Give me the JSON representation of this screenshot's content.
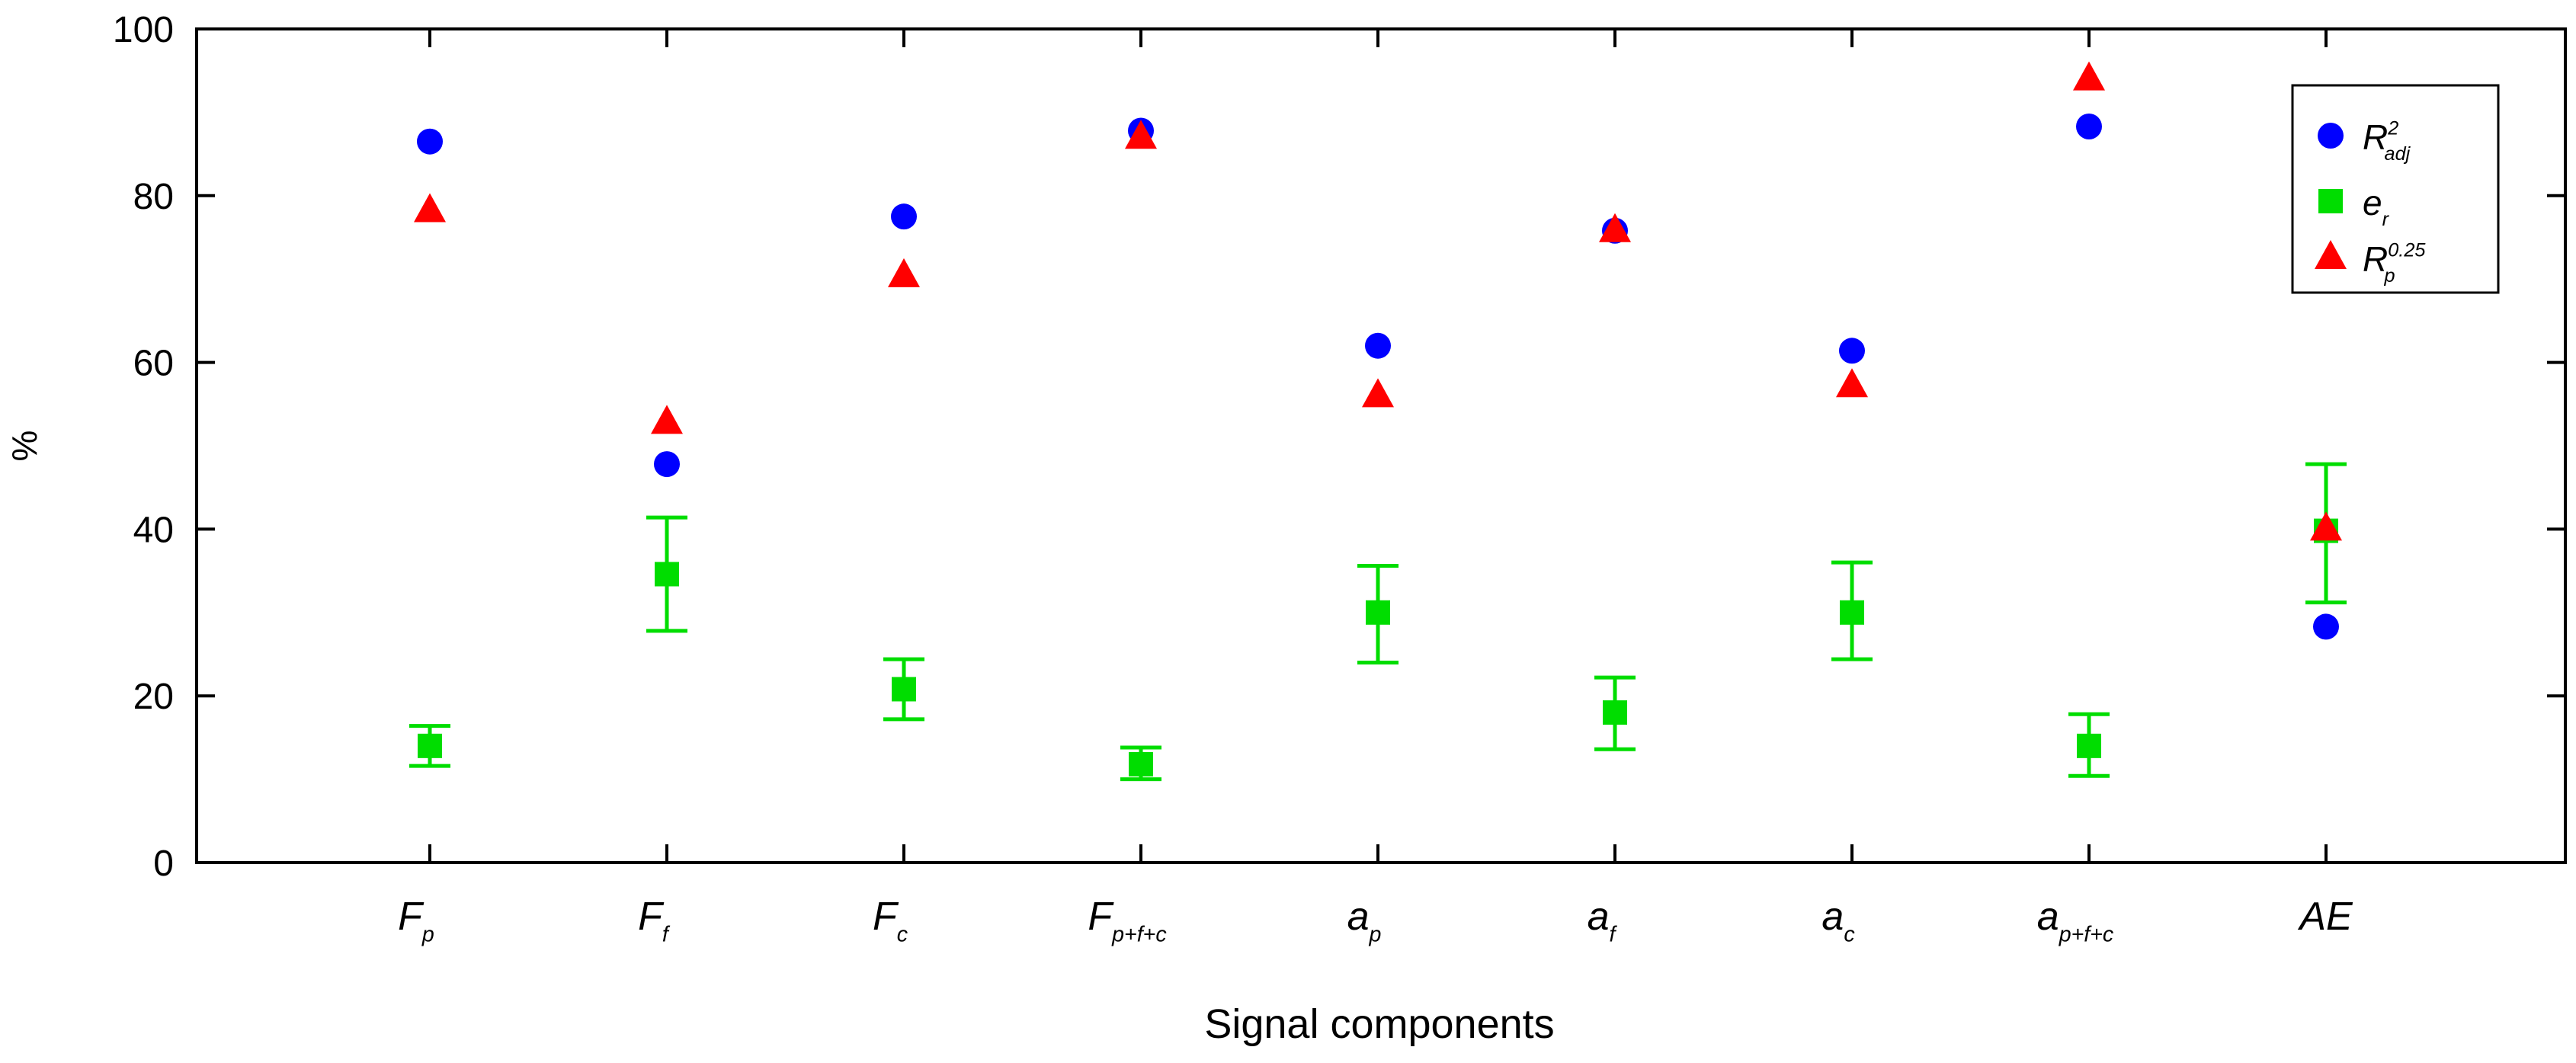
{
  "chart_data": {
    "type": "scatter",
    "xlabel": "Signal components",
    "ylabel": "%",
    "ylim": [
      0,
      100
    ],
    "yticks": [
      0,
      20,
      40,
      60,
      80,
      100
    ],
    "grid": false,
    "legend_position": "top-right",
    "categories": [
      {
        "main": "F",
        "sub": "p"
      },
      {
        "main": "F",
        "sub": "f"
      },
      {
        "main": "F",
        "sub": "c"
      },
      {
        "main": "F",
        "sub": "p+f+c"
      },
      {
        "main": "a",
        "sub": "p"
      },
      {
        "main": "a",
        "sub": "f"
      },
      {
        "main": "a",
        "sub": "c"
      },
      {
        "main": "a",
        "sub": "p+f+c"
      },
      {
        "main": "AE",
        "sub": ""
      }
    ],
    "series": [
      {
        "name": {
          "main": "R",
          "sup": "2",
          "sub": "adj"
        },
        "marker": "circle",
        "color": "#0000ff",
        "values": [
          86.5,
          47.8,
          77.5,
          87.8,
          62.0,
          75.8,
          61.4,
          88.3,
          28.3
        ]
      },
      {
        "name": {
          "main": "e",
          "sup": "",
          "sub": "r"
        },
        "marker": "square",
        "color": "#00dd00",
        "values": [
          14.0,
          34.6,
          20.8,
          11.8,
          30.0,
          18.0,
          30.0,
          14.0,
          39.8
        ],
        "error_low": [
          11.6,
          27.8,
          17.2,
          10.0,
          24.0,
          13.6,
          24.4,
          10.4,
          31.2
        ],
        "error_high": [
          16.4,
          41.4,
          24.4,
          13.8,
          35.6,
          22.2,
          36.0,
          17.8,
          47.8
        ]
      },
      {
        "name": {
          "main": "R",
          "sup": "0.25",
          "sub": "p"
        },
        "marker": "triangle",
        "color": "#ff0000",
        "values": [
          78.2,
          52.8,
          70.4,
          87.0,
          56.0,
          75.8,
          57.2,
          94.0,
          40.0
        ]
      }
    ]
  }
}
